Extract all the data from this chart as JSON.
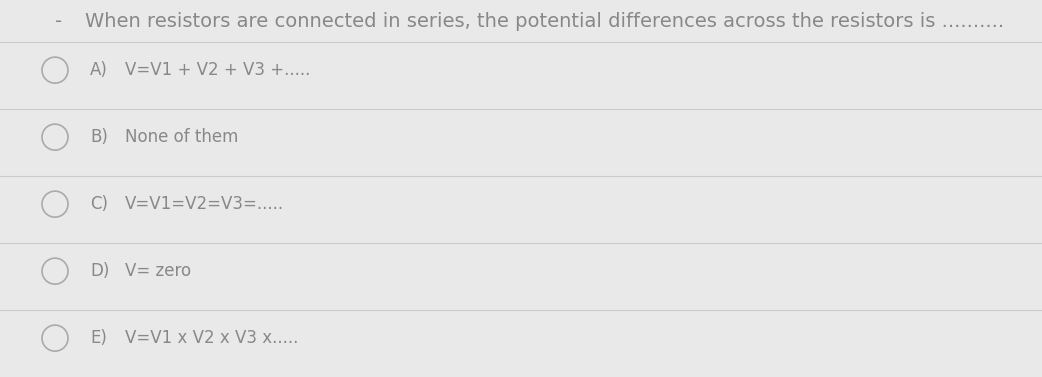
{
  "background_color": "#e9e9e9",
  "title": "When resistors are connected in series, the potential differences across the resistors is ..........",
  "title_fontsize": 14,
  "title_color": "#888888",
  "dash_color": "#888888",
  "options": [
    {
      "label": "A)",
      "text": "V=V1 + V2 + V3 +....."
    },
    {
      "label": "B)",
      "text": "None of them"
    },
    {
      "label": "C)",
      "text": "V=V1=V2=V3=....."
    },
    {
      "label": "D)",
      "text": "V= zero"
    },
    {
      "label": "E)",
      "text": "V=V1 x V2 x V3 x....."
    }
  ],
  "option_fontsize": 12,
  "option_color": "#888888",
  "circle_color": "#aaaaaa",
  "circle_linewidth": 1.2,
  "divider_color": "#cccccc",
  "divider_linewidth": 0.8,
  "fig_width": 10.42,
  "fig_height": 3.77,
  "dpi": 100
}
